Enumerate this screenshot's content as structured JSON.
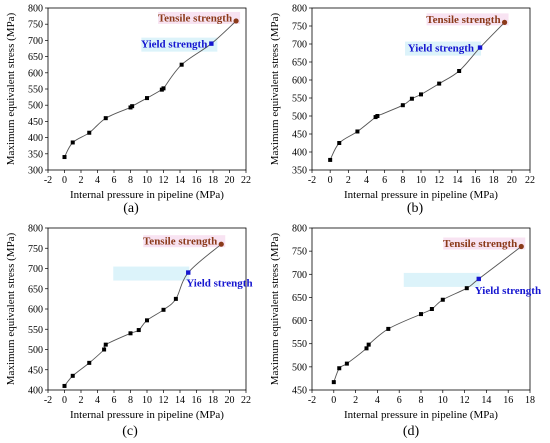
{
  "chart_data": [
    {
      "type": "line",
      "caption": "(a)",
      "xlabel": "Internal pressure in pipeline (MPa)",
      "ylabel": "Maximum equivalent stress (MPa)",
      "xlim": [
        -2,
        22
      ],
      "ylim": [
        300,
        800
      ],
      "xticks": [
        -2,
        0,
        2,
        4,
        6,
        8,
        10,
        12,
        14,
        16,
        18,
        20,
        22
      ],
      "yticks": [
        300,
        350,
        400,
        450,
        500,
        550,
        600,
        650,
        700,
        750,
        800
      ],
      "points": [
        [
          0,
          340
        ],
        [
          1,
          385
        ],
        [
          3,
          415
        ],
        [
          5,
          460
        ],
        [
          8,
          493
        ],
        [
          8.2,
          497
        ],
        [
          10,
          522
        ],
        [
          11.8,
          548
        ],
        [
          12,
          552
        ],
        [
          14.2,
          625
        ],
        [
          17.8,
          690
        ],
        [
          20.8,
          760
        ]
      ],
      "annotations": [
        {
          "text": "Tensile strength",
          "x": 20.8,
          "y": 760,
          "color": "#8b3a1a"
        },
        {
          "text": "Yield strength",
          "x": 17.8,
          "y": 690,
          "color": "#1515d0"
        }
      ]
    },
    {
      "type": "line",
      "caption": "(b)",
      "xlabel": "Internal pressure in pipeline (MPa)",
      "ylabel": "Maximum equivalent stress (MPa)",
      "xlim": [
        -2,
        22
      ],
      "ylim": [
        350,
        800
      ],
      "xticks": [
        -2,
        0,
        2,
        4,
        6,
        8,
        10,
        12,
        14,
        16,
        18,
        20,
        22
      ],
      "yticks": [
        350,
        400,
        450,
        500,
        550,
        600,
        650,
        700,
        750,
        800
      ],
      "points": [
        [
          0,
          378
        ],
        [
          1,
          425
        ],
        [
          3,
          457
        ],
        [
          5,
          497
        ],
        [
          5.2,
          500
        ],
        [
          8,
          530
        ],
        [
          9,
          548
        ],
        [
          10,
          560
        ],
        [
          12,
          590
        ],
        [
          14.2,
          625
        ],
        [
          16.5,
          690
        ],
        [
          19.2,
          760
        ]
      ],
      "annotations": [
        {
          "text": "Tensile strength",
          "x": 19.2,
          "y": 760,
          "color": "#8b3a1a"
        },
        {
          "text": "Yield strength",
          "x": 16.5,
          "y": 690,
          "color": "#1515d0"
        }
      ]
    },
    {
      "type": "line",
      "caption": "(c)",
      "xlabel": "Internal pressure in pipeline (MPa)",
      "ylabel": "Maximum equivalent stress (MPa)",
      "xlim": [
        -2,
        22
      ],
      "ylim": [
        400,
        800
      ],
      "xticks": [
        -2,
        0,
        2,
        4,
        6,
        8,
        10,
        12,
        14,
        16,
        18,
        20,
        22
      ],
      "yticks": [
        400,
        450,
        500,
        550,
        600,
        650,
        700,
        750,
        800
      ],
      "points": [
        [
          0,
          410
        ],
        [
          1,
          435
        ],
        [
          3,
          467
        ],
        [
          4.8,
          500
        ],
        [
          5,
          512
        ],
        [
          8,
          540
        ],
        [
          9,
          548
        ],
        [
          10,
          572
        ],
        [
          12,
          598
        ],
        [
          13.5,
          625
        ],
        [
          15,
          690
        ],
        [
          19,
          760
        ]
      ],
      "annotations": [
        {
          "text": "Tensile strength",
          "x": 19,
          "y": 760,
          "color": "#8b3a1a"
        },
        {
          "text": "Yield strength",
          "x": 15,
          "y": 690,
          "color": "#1515d0"
        }
      ]
    },
    {
      "type": "line",
      "caption": "(d)",
      "xlabel": "Internal pressure in pipeline (MPa)",
      "ylabel": "Maximum equivalent stress (MPa)",
      "xlim": [
        -2,
        18
      ],
      "ylim": [
        450,
        800
      ],
      "xticks": [
        -2,
        0,
        2,
        4,
        6,
        8,
        10,
        12,
        14,
        16,
        18
      ],
      "yticks": [
        450,
        500,
        550,
        600,
        650,
        700,
        750,
        800
      ],
      "points": [
        [
          0,
          467
        ],
        [
          0.5,
          497
        ],
        [
          1.2,
          507
        ],
        [
          3,
          540
        ],
        [
          3.2,
          548
        ],
        [
          5,
          582
        ],
        [
          8,
          614
        ],
        [
          9,
          625
        ],
        [
          10,
          645
        ],
        [
          12.2,
          670
        ],
        [
          13.3,
          690
        ],
        [
          17.2,
          760
        ]
      ],
      "annotations": [
        {
          "text": "Tensile strength",
          "x": 17.2,
          "y": 760,
          "color": "#8b3a1a"
        },
        {
          "text": "Yield strength",
          "x": 13.3,
          "y": 690,
          "color": "#1515d0"
        }
      ]
    }
  ]
}
